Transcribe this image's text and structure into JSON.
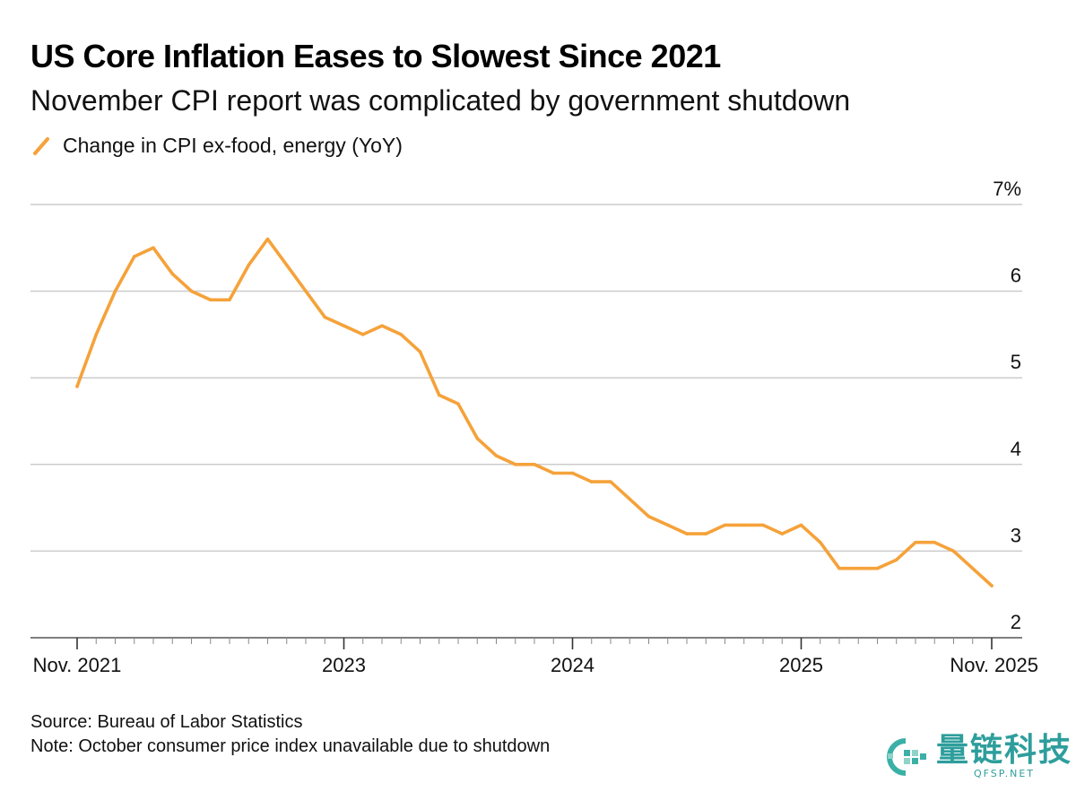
{
  "title": "US Core Inflation Eases to Slowest Since 2021",
  "subtitle": "November CPI report was complicated by government shutdown",
  "source": "Source: Bureau of Labor Statistics",
  "note": "Note: October consumer price index unavailable due to shutdown",
  "watermark": {
    "cn": "量链科技",
    "en": "QFSP.NET"
  },
  "colors": {
    "line": "#f5a23a",
    "grid": "#cccccc",
    "axis": "#333333"
  },
  "chart_data": {
    "type": "line",
    "title": "US Core Inflation Eases to Slowest Since 2021",
    "subtitle": "November CPI report was complicated by government shutdown",
    "ylim": [
      2,
      7
    ],
    "yticks": [
      {
        "value": 7,
        "label": "7%"
      },
      {
        "value": 6,
        "label": "6"
      },
      {
        "value": 5,
        "label": "5"
      },
      {
        "value": 4,
        "label": "4"
      },
      {
        "value": 3,
        "label": "3"
      },
      {
        "value": 2,
        "label": "2"
      }
    ],
    "xticks": [
      {
        "value": "2021-11",
        "label": "Nov. 2021"
      },
      {
        "value": "2023-01",
        "label": "2023"
      },
      {
        "value": "2024-01",
        "label": "2024"
      },
      {
        "value": "2025-01",
        "label": "2025"
      },
      {
        "value": "2025-11",
        "label": "Nov. 2025"
      }
    ],
    "grid": true,
    "legend_position": "top-left",
    "series": [
      {
        "name": "Change in CPI ex-food, energy (YoY)",
        "color": "#f5a23a",
        "points": [
          [
            "2021-11",
            4.9
          ],
          [
            "2021-12",
            5.5
          ],
          [
            "2022-01",
            6.0
          ],
          [
            "2022-02",
            6.4
          ],
          [
            "2022-03",
            6.5
          ],
          [
            "2022-04",
            6.2
          ],
          [
            "2022-05",
            6.0
          ],
          [
            "2022-06",
            5.9
          ],
          [
            "2022-07",
            5.9
          ],
          [
            "2022-08",
            6.3
          ],
          [
            "2022-09",
            6.6
          ],
          [
            "2022-10",
            6.3
          ],
          [
            "2022-11",
            6.0
          ],
          [
            "2022-12",
            5.7
          ],
          [
            "2023-01",
            5.6
          ],
          [
            "2023-02",
            5.5
          ],
          [
            "2023-03",
            5.6
          ],
          [
            "2023-04",
            5.5
          ],
          [
            "2023-05",
            5.3
          ],
          [
            "2023-06",
            4.8
          ],
          [
            "2023-07",
            4.7
          ],
          [
            "2023-08",
            4.3
          ],
          [
            "2023-09",
            4.1
          ],
          [
            "2023-10",
            4.0
          ],
          [
            "2023-11",
            4.0
          ],
          [
            "2023-12",
            3.9
          ],
          [
            "2024-01",
            3.9
          ],
          [
            "2024-02",
            3.8
          ],
          [
            "2024-03",
            3.8
          ],
          [
            "2024-04",
            3.6
          ],
          [
            "2024-05",
            3.4
          ],
          [
            "2024-06",
            3.3
          ],
          [
            "2024-07",
            3.2
          ],
          [
            "2024-08",
            3.2
          ],
          [
            "2024-09",
            3.3
          ],
          [
            "2024-10",
            3.3
          ],
          [
            "2024-11",
            3.3
          ],
          [
            "2024-12",
            3.2
          ],
          [
            "2025-01",
            3.3
          ],
          [
            "2025-02",
            3.1
          ],
          [
            "2025-03",
            2.8
          ],
          [
            "2025-04",
            2.8
          ],
          [
            "2025-05",
            2.8
          ],
          [
            "2025-06",
            2.9
          ],
          [
            "2025-07",
            3.1
          ],
          [
            "2025-08",
            3.1
          ],
          [
            "2025-09",
            3.0
          ],
          [
            "2025-11",
            2.6
          ]
        ]
      }
    ]
  }
}
